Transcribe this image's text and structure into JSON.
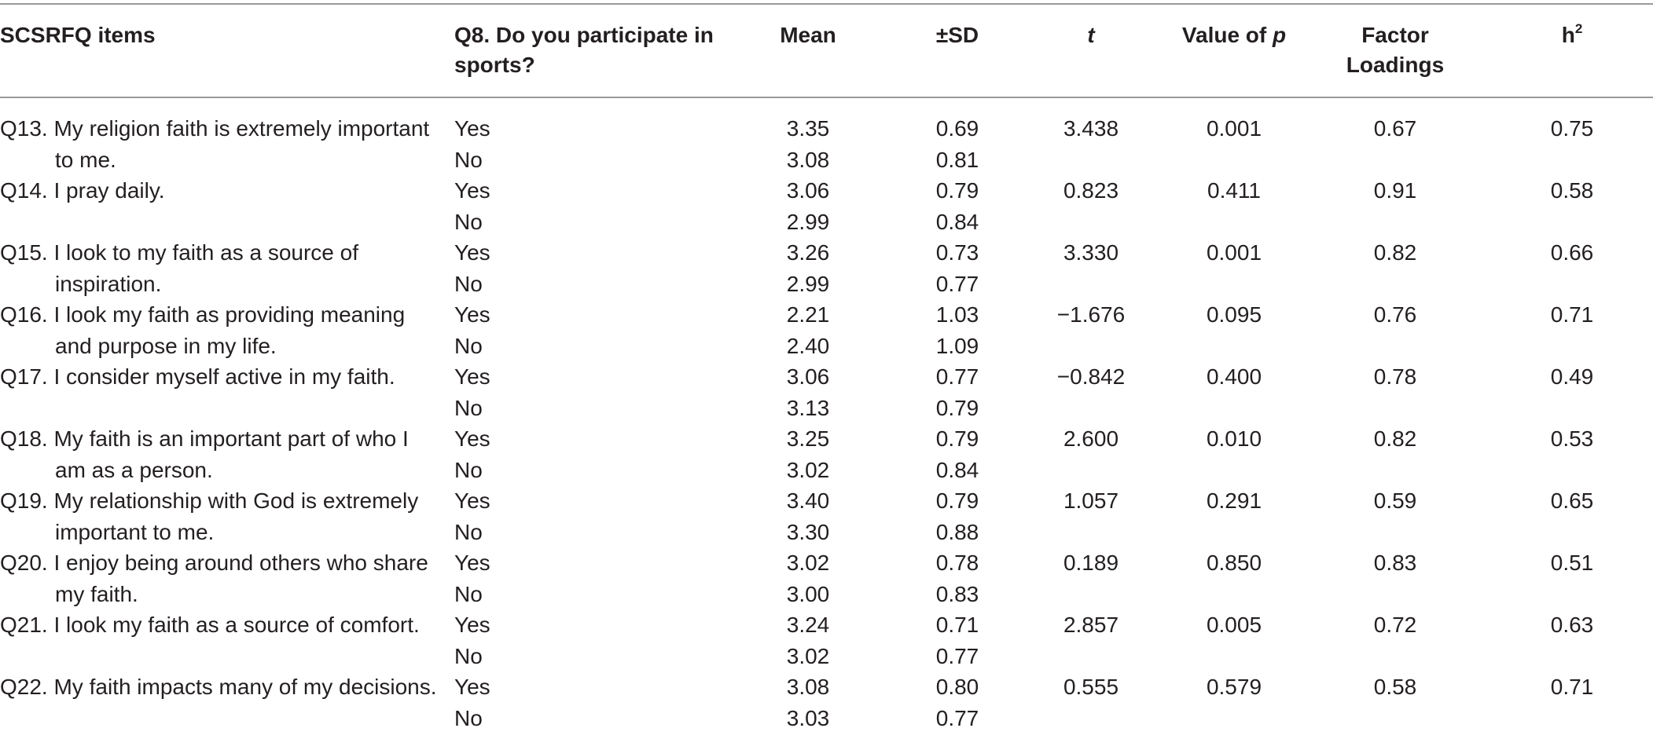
{
  "header": {
    "col_items": "SCSRFQ items",
    "col_q8": "Q8. Do you participate in sports?",
    "col_mean": "Mean",
    "col_sd": "±SD",
    "col_t": "t",
    "col_p_prefix": "Value of",
    "col_p_var": "p",
    "col_factor": "Factor Loadings",
    "col_h2_base": "h",
    "col_h2_sup": "2"
  },
  "rows": [
    {
      "item": "Q13. My religion faith is extremely important to me.",
      "yes_label": "Yes",
      "no_label": "No",
      "mean_yes": "3.35",
      "mean_no": "3.08",
      "sd_yes": "0.69",
      "sd_no": "0.81",
      "t": "3.438",
      "p": "0.001",
      "loading": "0.67",
      "h2": "0.75"
    },
    {
      "item": "Q14. I pray daily.",
      "yes_label": "Yes",
      "no_label": "No",
      "mean_yes": "3.06",
      "mean_no": "2.99",
      "sd_yes": "0.79",
      "sd_no": "0.84",
      "t": "0.823",
      "p": "0.411",
      "loading": "0.91",
      "h2": "0.58"
    },
    {
      "item": "Q15. I look to my faith as a source of inspiration.",
      "yes_label": "Yes",
      "no_label": "No",
      "mean_yes": "3.26",
      "mean_no": "2.99",
      "sd_yes": "0.73",
      "sd_no": "0.77",
      "t": "3.330",
      "p": "0.001",
      "loading": "0.82",
      "h2": "0.66"
    },
    {
      "item": "Q16. I look my faith as providing meaning and purpose in my life.",
      "yes_label": "Yes",
      "no_label": "No",
      "mean_yes": "2.21",
      "mean_no": "2.40",
      "sd_yes": "1.03",
      "sd_no": "1.09",
      "t": "−1.676",
      "p": "0.095",
      "loading": "0.76",
      "h2": "0.71"
    },
    {
      "item": "Q17. I consider myself active in my faith.",
      "yes_label": "Yes",
      "no_label": "No",
      "mean_yes": "3.06",
      "mean_no": "3.13",
      "sd_yes": "0.77",
      "sd_no": "0.79",
      "t": "−0.842",
      "p": "0.400",
      "loading": "0.78",
      "h2": "0.49"
    },
    {
      "item": "Q18. My faith is an important part of who I am as a person.",
      "yes_label": "Yes",
      "no_label": "No",
      "mean_yes": "3.25",
      "mean_no": "3.02",
      "sd_yes": "0.79",
      "sd_no": "0.84",
      "t": "2.600",
      "p": "0.010",
      "loading": "0.82",
      "h2": "0.53"
    },
    {
      "item": "Q19. My relationship with God is extremely important to me.",
      "yes_label": "Yes",
      "no_label": "No",
      "mean_yes": "3.40",
      "mean_no": "3.30",
      "sd_yes": "0.79",
      "sd_no": "0.88",
      "t": "1.057",
      "p": "0.291",
      "loading": "0.59",
      "h2": "0.65"
    },
    {
      "item": "Q20. I enjoy being around others who share my faith.",
      "yes_label": "Yes",
      "no_label": "No",
      "mean_yes": "3.02",
      "mean_no": "3.00",
      "sd_yes": "0.78",
      "sd_no": "0.83",
      "t": "0.189",
      "p": "0.850",
      "loading": "0.83",
      "h2": "0.51"
    },
    {
      "item": "Q21. I look my faith as a source of comfort.",
      "yes_label": "Yes",
      "no_label": "No",
      "mean_yes": "3.24",
      "mean_no": "3.02",
      "sd_yes": "0.71",
      "sd_no": "0.77",
      "t": "2.857",
      "p": "0.005",
      "loading": "0.72",
      "h2": "0.63"
    },
    {
      "item": "Q22. My faith impacts many of my decisions.",
      "yes_label": "Yes",
      "no_label": "No",
      "mean_yes": "3.08",
      "mean_no": "3.03",
      "sd_yes": "0.80",
      "sd_no": "0.77",
      "t": "0.555",
      "p": "0.579",
      "loading": "0.58",
      "h2": "0.71"
    }
  ]
}
